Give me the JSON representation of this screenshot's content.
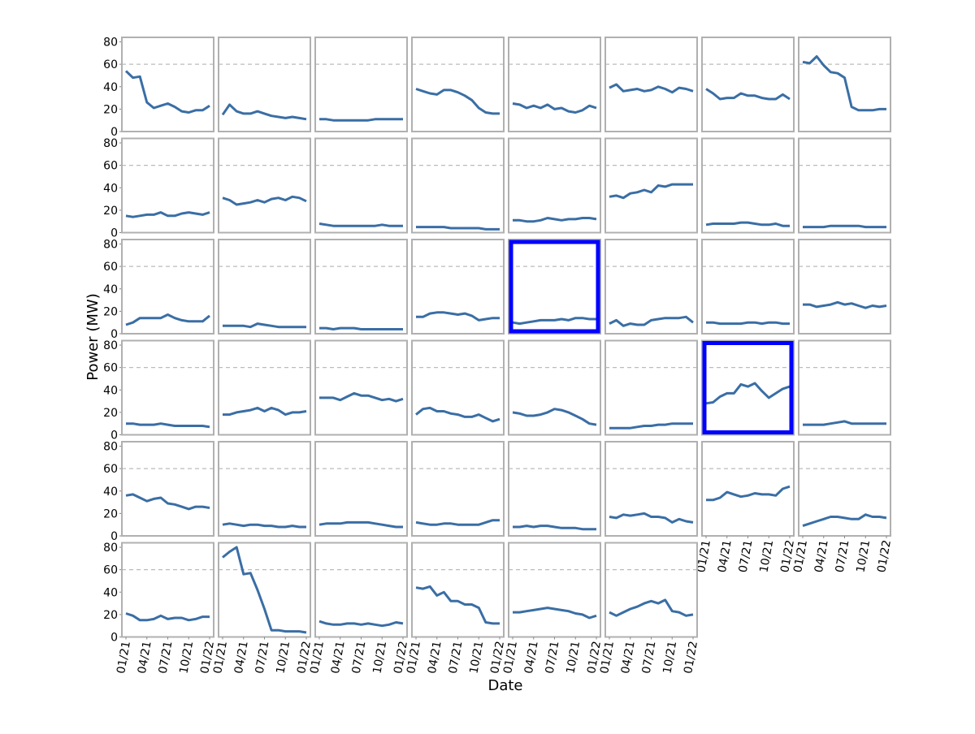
{
  "chart_data": {
    "type": "line",
    "x_label": "Date",
    "y_label": "Power (MW)",
    "color": "#3a6ea5",
    "frame_color": "#b0b0b0",
    "highlight_color": "#0000ff",
    "reference_line": 60,
    "reference_line_style": "dashed",
    "x": [
      "2021-01",
      "2021-02",
      "2021-03",
      "2021-04",
      "2021-05",
      "2021-06",
      "2021-07",
      "2021-08",
      "2021-09",
      "2021-10",
      "2021-11",
      "2021-12",
      "2022-01"
    ],
    "xlim": [
      "2021-01",
      "2022-01"
    ],
    "xticks": [
      {
        "value": "2021-01",
        "label": "01/21"
      },
      {
        "value": "2021-04",
        "label": "04/21"
      },
      {
        "value": "2021-07",
        "label": "07/21"
      },
      {
        "value": "2021-10",
        "label": "10/21"
      },
      {
        "value": "2022-01",
        "label": "01/22"
      }
    ],
    "ylim": [
      0,
      84
    ],
    "yticks": [
      0,
      20,
      40,
      60,
      80
    ],
    "panels": [
      {
        "values": [
          54,
          48,
          49,
          26,
          21,
          23,
          25,
          22,
          18,
          17,
          19,
          19,
          23
        ]
      },
      {
        "values": [
          15,
          24,
          18,
          16,
          16,
          18,
          16,
          14,
          13,
          12,
          13,
          12,
          11
        ]
      },
      {
        "values": [
          11,
          11,
          10,
          10,
          10,
          10,
          10,
          10,
          11,
          11,
          11,
          11,
          11
        ]
      },
      {
        "values": [
          38,
          36,
          34,
          33,
          37,
          37,
          35,
          32,
          28,
          21,
          17,
          16,
          16
        ]
      },
      {
        "values": [
          25,
          24,
          21,
          23,
          21,
          24,
          20,
          21,
          18,
          17,
          19,
          23,
          21
        ]
      },
      {
        "values": [
          39,
          42,
          36,
          37,
          38,
          36,
          37,
          40,
          38,
          35,
          39,
          38,
          36
        ]
      },
      {
        "values": [
          38,
          34,
          29,
          30,
          30,
          34,
          32,
          32,
          30,
          29,
          29,
          33,
          29
        ]
      },
      {
        "values": [
          62,
          61,
          67,
          59,
          53,
          52,
          48,
          22,
          19,
          19,
          19,
          20,
          20
        ]
      },
      {
        "values": [
          15,
          14,
          15,
          16,
          16,
          18,
          15,
          15,
          17,
          18,
          17,
          16,
          18
        ]
      },
      {
        "values": [
          31,
          29,
          25,
          26,
          27,
          29,
          27,
          30,
          31,
          29,
          32,
          31,
          28
        ]
      },
      {
        "values": [
          8,
          7,
          6,
          6,
          6,
          6,
          6,
          6,
          6,
          7,
          6,
          6,
          6
        ]
      },
      {
        "values": [
          5,
          5,
          5,
          5,
          5,
          4,
          4,
          4,
          4,
          4,
          3,
          3,
          3
        ]
      },
      {
        "values": [
          11,
          11,
          10,
          10,
          11,
          13,
          12,
          11,
          12,
          12,
          13,
          13,
          12
        ]
      },
      {
        "values": [
          32,
          33,
          31,
          35,
          36,
          38,
          36,
          42,
          41,
          43,
          43,
          43,
          43
        ]
      },
      {
        "values": [
          7,
          8,
          8,
          8,
          8,
          9,
          9,
          8,
          7,
          7,
          8,
          6,
          6
        ]
      },
      {
        "values": [
          5,
          5,
          5,
          5,
          6,
          6,
          6,
          6,
          6,
          5,
          5,
          5,
          5
        ]
      },
      {
        "values": [
          8,
          10,
          14,
          14,
          14,
          14,
          17,
          14,
          12,
          11,
          11,
          11,
          16
        ]
      },
      {
        "values": [
          7,
          7,
          7,
          7,
          6,
          9,
          8,
          7,
          6,
          6,
          6,
          6,
          6
        ]
      },
      {
        "values": [
          5,
          5,
          4,
          5,
          5,
          5,
          4,
          4,
          4,
          4,
          4,
          4,
          4
        ]
      },
      {
        "values": [
          15,
          15,
          18,
          19,
          19,
          18,
          17,
          18,
          16,
          12,
          13,
          14,
          14
        ]
      },
      {
        "values": [
          10,
          9,
          10,
          11,
          12,
          12,
          12,
          13,
          12,
          14,
          14,
          13,
          13
        ],
        "highlight": true
      },
      {
        "values": [
          9,
          12,
          7,
          9,
          8,
          8,
          12,
          13,
          14,
          14,
          14,
          15,
          10
        ]
      },
      {
        "values": [
          10,
          10,
          9,
          9,
          9,
          9,
          10,
          10,
          9,
          10,
          10,
          9,
          9
        ]
      },
      {
        "values": [
          26,
          26,
          24,
          25,
          26,
          28,
          26,
          27,
          25,
          23,
          25,
          24,
          25
        ]
      },
      {
        "values": [
          10,
          10,
          9,
          9,
          9,
          10,
          9,
          8,
          8,
          8,
          8,
          8,
          7
        ]
      },
      {
        "values": [
          18,
          18,
          20,
          21,
          22,
          24,
          21,
          24,
          22,
          18,
          20,
          20,
          21
        ]
      },
      {
        "values": [
          33,
          33,
          33,
          31,
          34,
          37,
          35,
          35,
          33,
          31,
          32,
          30,
          32
        ]
      },
      {
        "values": [
          18,
          23,
          24,
          21,
          21,
          19,
          18,
          16,
          16,
          18,
          15,
          12,
          14
        ]
      },
      {
        "values": [
          20,
          19,
          17,
          17,
          18,
          20,
          23,
          22,
          20,
          17,
          14,
          10,
          9
        ]
      },
      {
        "values": [
          6,
          6,
          6,
          6,
          7,
          8,
          8,
          9,
          9,
          10,
          10,
          10,
          10
        ]
      },
      {
        "values": [
          28,
          29,
          34,
          37,
          37,
          45,
          43,
          46,
          39,
          33,
          37,
          41,
          43
        ],
        "highlight": true
      },
      {
        "values": [
          9,
          9,
          9,
          9,
          10,
          11,
          12,
          10,
          10,
          10,
          10,
          10,
          10
        ]
      },
      {
        "values": [
          36,
          37,
          34,
          31,
          33,
          34,
          29,
          28,
          26,
          24,
          26,
          26,
          25
        ]
      },
      {
        "values": [
          10,
          11,
          10,
          9,
          10,
          10,
          9,
          9,
          8,
          8,
          9,
          8,
          8
        ]
      },
      {
        "values": [
          10,
          11,
          11,
          11,
          12,
          12,
          12,
          12,
          11,
          10,
          9,
          8,
          8
        ]
      },
      {
        "values": [
          12,
          11,
          10,
          10,
          11,
          11,
          10,
          10,
          10,
          10,
          12,
          14,
          14
        ]
      },
      {
        "values": [
          8,
          8,
          9,
          8,
          9,
          9,
          8,
          7,
          7,
          7,
          6,
          6,
          6
        ]
      },
      {
        "values": [
          17,
          16,
          19,
          18,
          19,
          20,
          17,
          17,
          16,
          12,
          15,
          13,
          12
        ]
      },
      {
        "values": [
          32,
          32,
          34,
          39,
          37,
          35,
          36,
          38,
          37,
          37,
          36,
          42,
          44
        ]
      },
      {
        "values": [
          9,
          11,
          13,
          15,
          17,
          17,
          16,
          15,
          15,
          19,
          17,
          17,
          16
        ]
      },
      {
        "values": [
          21,
          19,
          15,
          15,
          16,
          19,
          16,
          17,
          17,
          15,
          16,
          18,
          18
        ]
      },
      {
        "values": [
          71,
          76,
          80,
          56,
          57,
          42,
          25,
          6,
          6,
          5,
          5,
          5,
          4
        ]
      },
      {
        "values": [
          14,
          12,
          11,
          11,
          12,
          12,
          11,
          12,
          11,
          10,
          11,
          13,
          12
        ]
      },
      {
        "values": [
          44,
          43,
          45,
          37,
          40,
          32,
          32,
          29,
          29,
          26,
          13,
          12,
          12
        ]
      },
      {
        "values": [
          22,
          22,
          23,
          24,
          25,
          26,
          25,
          24,
          23,
          21,
          20,
          17,
          19
        ]
      },
      {
        "values": [
          22,
          19,
          22,
          25,
          27,
          30,
          32,
          30,
          33,
          23,
          22,
          19,
          20
        ]
      }
    ]
  }
}
